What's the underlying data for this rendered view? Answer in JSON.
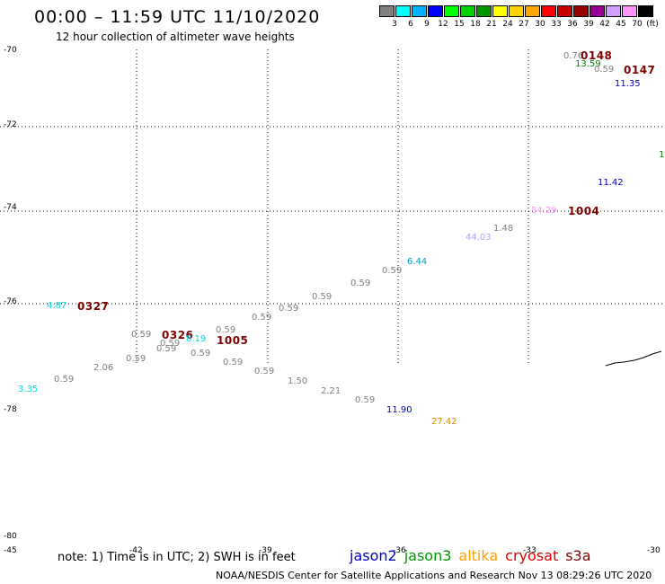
{
  "title": "00:00 – 11:59 UTC 11/10/2020",
  "subtitle": "12 hour collection of altimeter wave heights",
  "color_scale": {
    "labels": [
      "3",
      "6",
      "9",
      "12",
      "15",
      "18",
      "21",
      "24",
      "27",
      "30",
      "33",
      "36",
      "39",
      "42",
      "45",
      "70"
    ],
    "unit": "(ft)",
    "colors": [
      "#808080",
      "#00ffff",
      "#00b4ff",
      "#0000ff",
      "#00ff00",
      "#00d200",
      "#009600",
      "#ffff00",
      "#ffd200",
      "#ffa500",
      "#ff0000",
      "#c80000",
      "#960000",
      "#960096",
      "#d2a0ff",
      "#ff96ff",
      "#000000"
    ]
  },
  "y_axis": {
    "labels": [
      "-70",
      "-72",
      "-74",
      "-76",
      "-78",
      "-80"
    ]
  },
  "x_axis": {
    "labels": [
      "-45",
      "-42",
      "-39",
      "-36",
      "-33",
      "-30"
    ]
  },
  "marks": [
    {
      "text": "0.76",
      "color": "#808080"
    },
    {
      "text": "0148",
      "color": "#800000",
      "big": true
    },
    {
      "text": "13.59",
      "color": "#008000"
    },
    {
      "text": "0.59",
      "color": "#808080"
    },
    {
      "text": "0147",
      "color": "#800000",
      "big": true
    },
    {
      "text": "11.35",
      "color": "#0000c8"
    },
    {
      "text": "1.",
      "color": "#008000"
    },
    {
      "text": "11.42",
      "color": "#0000c8"
    },
    {
      "text": "54.29",
      "color": "#ff96ff"
    },
    {
      "text": "1004",
      "color": "#800000",
      "big": true
    },
    {
      "text": "1.48",
      "color": "#808080"
    },
    {
      "text": "44.03",
      "color": "#b4a0ff"
    },
    {
      "text": "6.44",
      "color": "#00a0c8"
    },
    {
      "text": "0.59",
      "color": "#808080"
    },
    {
      "text": "0.59",
      "color": "#808080"
    },
    {
      "text": "0.59",
      "color": "#808080"
    },
    {
      "text": "0.59",
      "color": "#808080"
    },
    {
      "text": "0.59",
      "color": "#808080"
    },
    {
      "text": "4.87",
      "color": "#00dcdc"
    },
    {
      "text": "0327",
      "color": "#800000",
      "big": true
    },
    {
      "text": "0.59",
      "color": "#808080"
    },
    {
      "text": "0326",
      "color": "#800000",
      "big": true
    },
    {
      "text": "0.59",
      "color": "#808080"
    },
    {
      "text": "0.59",
      "color": "#808080"
    },
    {
      "text": "8.19",
      "color": "#00dcdc"
    },
    {
      "text": "0.59",
      "color": "#808080"
    },
    {
      "text": "1005",
      "color": "#800000",
      "big": true
    },
    {
      "text": "0.59",
      "color": "#808080"
    },
    {
      "text": "0.59",
      "color": "#808080"
    },
    {
      "text": "2.06",
      "color": "#808080"
    },
    {
      "text": "0.59",
      "color": "#808080"
    },
    {
      "text": "0.59",
      "color": "#808080"
    },
    {
      "text": "3.35",
      "color": "#00dcdc"
    },
    {
      "text": "0.59",
      "color": "#808080"
    },
    {
      "text": "1.50",
      "color": "#808080"
    },
    {
      "text": "2.21",
      "color": "#808080"
    },
    {
      "text": "0.59",
      "color": "#808080"
    },
    {
      "text": "11.90",
      "color": "#0000c8"
    },
    {
      "text": "27.42",
      "color": "#e08c00"
    }
  ],
  "note": "note: 1) Time is in UTC; 2) SWH is in feet",
  "legend": [
    {
      "name": "jason2",
      "color": "#0000c8"
    },
    {
      "name": "jason3",
      "color": "#009600"
    },
    {
      "name": "altika",
      "color": "#ffa000"
    },
    {
      "name": "cryosat",
      "color": "#dc0000"
    },
    {
      "name": "s3a",
      "color": "#800000"
    }
  ],
  "credit": "NOAA/NESDIS Center for Satellite Applications and Research    Nov 13 08:29:26 UTC 2020"
}
